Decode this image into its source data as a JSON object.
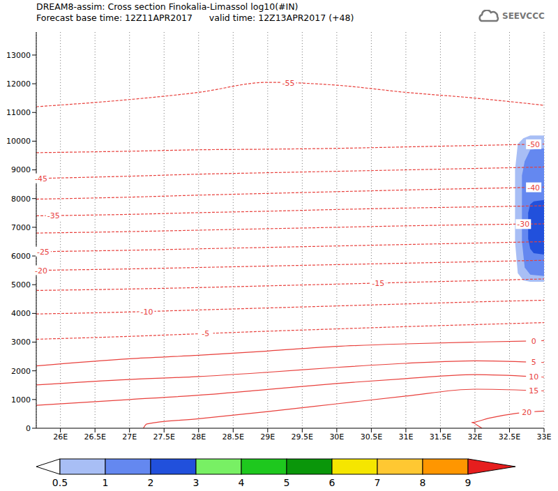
{
  "chart_data": {
    "type": "contour_cross_section",
    "title": "DREAM8-assim: Cross section Finokalia-Limassol log10(#IN)",
    "subtitle": "Forecast base time: 12Z11APR2017      valid time: 12Z13APR2017 (+48)",
    "logo": "SEEVCCC",
    "color": "#e8403c",
    "grid": "x",
    "xlim": [
      25.65,
      33
    ],
    "ylim": [
      0,
      13800
    ],
    "xticks": [
      {
        "value": 26,
        "label": "26E"
      },
      {
        "value": 26.5,
        "label": "26.5E"
      },
      {
        "value": 27,
        "label": "27E"
      },
      {
        "value": 27.5,
        "label": "27.5E"
      },
      {
        "value": 28,
        "label": "28E"
      },
      {
        "value": 28.5,
        "label": "28.5E"
      },
      {
        "value": 29,
        "label": "29E"
      },
      {
        "value": 29.5,
        "label": "29.5E"
      },
      {
        "value": 30,
        "label": "30E"
      },
      {
        "value": 30.5,
        "label": "30.5E"
      },
      {
        "value": 31,
        "label": "31E"
      },
      {
        "value": 31.5,
        "label": "31.5E"
      },
      {
        "value": 32,
        "label": "32E"
      },
      {
        "value": 32.5,
        "label": "32.5E"
      },
      {
        "value": 33,
        "label": "33E"
      }
    ],
    "yticks": [
      0,
      1000,
      2000,
      3000,
      4000,
      5000,
      6000,
      7000,
      8000,
      9000,
      10000,
      11000,
      12000,
      13000
    ],
    "series": [
      {
        "name": "-55",
        "line_style": "dashed",
        "label_x": 29.3,
        "x": [
          25.65,
          27,
          28,
          29,
          30,
          31,
          32,
          33
        ],
        "values": [
          11200,
          11450,
          11700,
          12050,
          11950,
          11700,
          11500,
          11250
        ]
      },
      {
        "name": "-50",
        "line_style": "dashed",
        "label_x": 32.85,
        "x": [
          25.65,
          27,
          28,
          29,
          30,
          31,
          32,
          33
        ],
        "values": [
          9600,
          9650,
          9700,
          9720,
          9750,
          9800,
          9850,
          9900
        ]
      },
      {
        "name": "-45",
        "line_style": "dashed",
        "label_x": 25.72,
        "x": [
          25.65,
          27,
          28,
          29,
          30,
          31,
          32,
          33
        ],
        "values": [
          8700,
          8780,
          8850,
          8900,
          8950,
          9000,
          9050,
          9100
        ]
      },
      {
        "name": "-40",
        "line_style": "dashed",
        "label_x": 32.85,
        "x": [
          25.65,
          27,
          28,
          29,
          30,
          31,
          32,
          33
        ],
        "values": [
          7980,
          8050,
          8120,
          8180,
          8240,
          8300,
          8350,
          8400
        ]
      },
      {
        "name": "-35",
        "line_style": "dashed",
        "label_x": 25.9,
        "x": [
          25.65,
          27,
          28,
          29,
          30,
          31,
          32,
          33
        ],
        "values": [
          7400,
          7450,
          7510,
          7560,
          7620,
          7670,
          7710,
          7750
        ]
      },
      {
        "name": "-30",
        "line_style": "dashed",
        "label_x": 32.7,
        "x": [
          25.65,
          27,
          28,
          29,
          30,
          31,
          32,
          33
        ],
        "values": [
          6800,
          6850,
          6900,
          6950,
          7000,
          7050,
          7090,
          7120
        ]
      },
      {
        "name": "-25",
        "line_style": "dashed",
        "label_x": 25.75,
        "x": [
          25.65,
          27,
          28,
          29,
          30,
          31,
          32,
          33
        ],
        "values": [
          6150,
          6200,
          6250,
          6300,
          6350,
          6400,
          6450,
          6500
        ]
      },
      {
        "name": "-20",
        "line_style": "dashed",
        "label_x": 25.72,
        "x": [
          25.65,
          27,
          28,
          29,
          30,
          31,
          32,
          33
        ],
        "values": [
          5500,
          5550,
          5600,
          5650,
          5700,
          5750,
          5800,
          5850
        ]
      },
      {
        "name": "-15",
        "line_style": "dashed",
        "label_x": 30.6,
        "x": [
          25.65,
          27,
          28,
          29,
          30,
          31,
          32,
          33
        ],
        "values": [
          4800,
          4850,
          4900,
          4960,
          5020,
          5080,
          5140,
          5200
        ]
      },
      {
        "name": "-10",
        "line_style": "dashed",
        "label_x": 27.25,
        "x": [
          25.65,
          27,
          28,
          29,
          30,
          31,
          32,
          33
        ],
        "values": [
          3980,
          4050,
          4120,
          4190,
          4260,
          4330,
          4400,
          4460
        ]
      },
      {
        "name": "-5",
        "line_style": "dashed",
        "label_x": 28.1,
        "x": [
          25.65,
          27,
          28,
          29,
          30,
          31,
          32,
          33
        ],
        "values": [
          3100,
          3200,
          3290,
          3380,
          3460,
          3540,
          3610,
          3680
        ]
      },
      {
        "name": "0",
        "line_style": "solid",
        "label_x": 32.85,
        "x": [
          25.65,
          27,
          28,
          29,
          30,
          31,
          32,
          33
        ],
        "values": [
          2170,
          2420,
          2540,
          2690,
          2850,
          2940,
          3000,
          3050
        ]
      },
      {
        "name": "5",
        "line_style": "solid",
        "label_x": 32.85,
        "x": [
          25.65,
          27,
          28,
          29,
          30,
          31,
          32,
          33
        ],
        "values": [
          1510,
          1700,
          1800,
          1950,
          2120,
          2260,
          2350,
          2290
        ]
      },
      {
        "name": "10",
        "line_style": "solid",
        "label_x": 32.85,
        "x": [
          25.65,
          27,
          28,
          29,
          30,
          31,
          32,
          33
        ],
        "values": [
          800,
          1000,
          1150,
          1350,
          1560,
          1730,
          1870,
          1780
        ]
      },
      {
        "name": "15",
        "line_style": "solid",
        "label_x": 32.85,
        "x": [
          27.2,
          27.25,
          28,
          29,
          30,
          31,
          32,
          33
        ],
        "values": [
          0,
          150,
          330,
          580,
          850,
          1120,
          1360,
          1300
        ]
      },
      {
        "name": "20",
        "line_style": "solid",
        "label_x": 32.75,
        "x": [
          33,
          32.6,
          32.2,
          31.95,
          32.05,
          32.1
        ],
        "values": [
          600,
          520,
          350,
          200,
          80,
          0
        ]
      }
    ],
    "in_regions": [
      {
        "level": 0.5,
        "x": [
          32.58,
          32.62,
          32.7,
          32.8,
          33
        ],
        "low": [
          6500,
          5400,
          5150,
          5100,
          5100
        ],
        "high": [
          9000,
          9900,
          10100,
          10200,
          10200
        ]
      },
      {
        "level": 1,
        "x": [
          32.68,
          32.72,
          32.8,
          33
        ],
        "low": [
          6500,
          5600,
          5350,
          5300
        ],
        "high": [
          8800,
          9300,
          9700,
          9750
        ]
      },
      {
        "level": 2,
        "x": [
          32.77,
          32.8,
          32.85,
          33
        ],
        "low": [
          6600,
          6250,
          6100,
          6050
        ],
        "high": [
          7500,
          7800,
          7900,
          7950
        ]
      }
    ],
    "colorbar": {
      "ticks": [
        0.5,
        1,
        2,
        3,
        4,
        5,
        6,
        7,
        8,
        9
      ],
      "colors": [
        "#ffffff",
        "#a8bef5",
        "#6488f0",
        "#2150dc",
        "#78f064",
        "#1ec81e",
        "#0a960a",
        "#f5e600",
        "#ffc832",
        "#ff9600",
        "#e61e1e"
      ]
    }
  }
}
